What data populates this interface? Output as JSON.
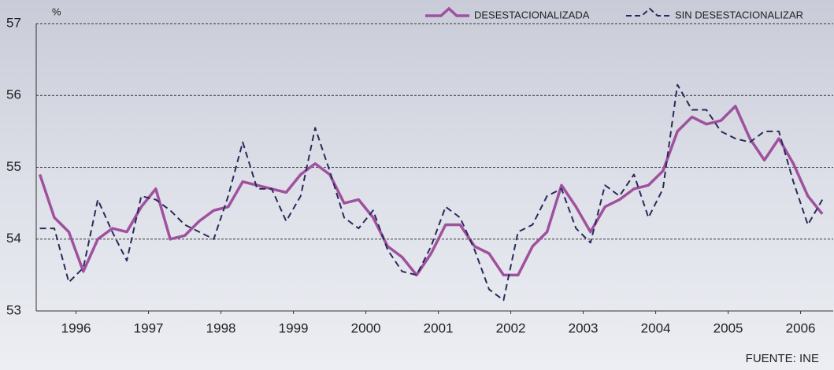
{
  "chart_data": {
    "type": "line",
    "y_unit": "%",
    "source": "FUENTE: INE",
    "x": [
      1996.0,
      1996.2,
      1996.4,
      1996.6,
      1996.8,
      1997.0,
      1997.2,
      1997.4,
      1997.6,
      1997.8,
      1998.0,
      1998.2,
      1998.4,
      1998.6,
      1998.8,
      1999.0,
      1999.2,
      1999.4,
      1999.6,
      1999.8,
      2000.0,
      2000.2,
      2000.4,
      2000.6,
      2000.8,
      2001.0,
      2001.2,
      2001.4,
      2001.6,
      2001.8,
      2002.0,
      2002.2,
      2002.4,
      2002.6,
      2002.8,
      2003.0,
      2003.2,
      2003.4,
      2003.6,
      2003.8,
      2004.0,
      2004.2,
      2004.4,
      2004.6,
      2004.8,
      2005.0,
      2005.2,
      2005.4,
      2005.6,
      2005.8,
      2006.0,
      2006.2,
      2006.4,
      2006.6,
      2006.8
    ],
    "series": [
      {
        "name": "DESESTACIONALIZADA",
        "color": "#a0519e",
        "dashed": false,
        "values": [
          54.9,
          54.3,
          54.1,
          53.55,
          54.0,
          54.15,
          54.1,
          54.45,
          54.7,
          54.0,
          54.05,
          54.25,
          54.4,
          54.45,
          54.8,
          54.75,
          54.7,
          54.65,
          54.9,
          55.05,
          54.9,
          54.5,
          54.55,
          54.3,
          53.9,
          53.75,
          53.5,
          53.8,
          54.2,
          54.2,
          53.9,
          53.8,
          53.5,
          53.5,
          53.9,
          54.1,
          54.75,
          54.45,
          54.1,
          54.45,
          54.55,
          54.7,
          54.75,
          54.95,
          55.5,
          55.7,
          55.6,
          55.65,
          55.85,
          55.4,
          55.1,
          55.4,
          55.05,
          54.6,
          54.35
        ]
      },
      {
        "name": "SIN DESESTACIONALIZAR",
        "color": "#2a2a5a",
        "dashed": true,
        "values": [
          54.15,
          54.15,
          53.4,
          53.6,
          54.55,
          54.1,
          53.7,
          54.6,
          54.55,
          54.4,
          54.2,
          54.1,
          54.0,
          54.6,
          55.35,
          54.7,
          54.7,
          54.25,
          54.6,
          55.55,
          54.95,
          54.3,
          54.15,
          54.4,
          53.85,
          53.55,
          53.5,
          53.9,
          54.45,
          54.3,
          53.85,
          53.3,
          53.15,
          54.1,
          54.2,
          54.6,
          54.7,
          54.15,
          53.95,
          54.75,
          54.6,
          54.9,
          54.3,
          54.7,
          56.15,
          55.8,
          55.8,
          55.5,
          55.4,
          55.35,
          55.5,
          55.5,
          54.8,
          54.2,
          54.55
        ]
      }
    ],
    "xlim": [
      1995.95,
      2006.95
    ],
    "xticks": [
      {
        "value": 1996.5,
        "label": "1996"
      },
      {
        "value": 1997.5,
        "label": "1997"
      },
      {
        "value": 1998.5,
        "label": "1998"
      },
      {
        "value": 1999.5,
        "label": "1999"
      },
      {
        "value": 2000.5,
        "label": "2000"
      },
      {
        "value": 2001.5,
        "label": "2001"
      },
      {
        "value": 2002.5,
        "label": "2002"
      },
      {
        "value": 2003.5,
        "label": "2003"
      },
      {
        "value": 2004.5,
        "label": "2004"
      },
      {
        "value": 2005.5,
        "label": "2005"
      },
      {
        "value": 2006.5,
        "label": "2006"
      }
    ],
    "ylim": [
      53,
      57
    ],
    "yticks": [
      53,
      54,
      55,
      56,
      57
    ],
    "grid": true,
    "legend": "top-right"
  }
}
